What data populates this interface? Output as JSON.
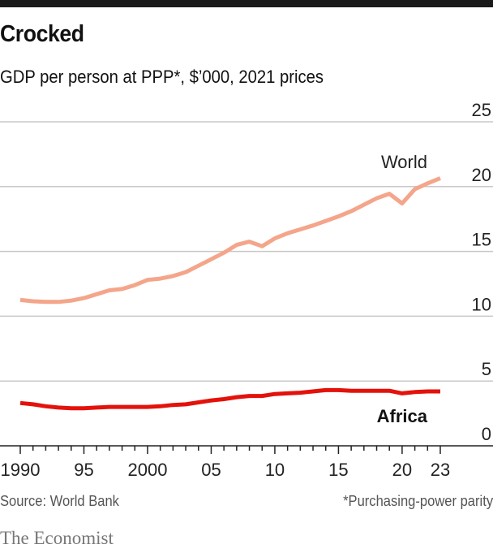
{
  "header": {
    "title": "Crocked",
    "subtitle": "GDP per person at PPP*, $’000, 2021 prices"
  },
  "footer": {
    "source": "Source: World Bank",
    "note": "*Purchasing-power parity",
    "logo": "The Economist"
  },
  "chart_data": {
    "type": "line",
    "title": "Crocked",
    "subtitle": "GDP per person at PPP*, $’000, 2021 prices",
    "ylim": [
      0,
      25
    ],
    "yticks": [
      0,
      5,
      10,
      15,
      20,
      25
    ],
    "ytick_labels": [
      "0",
      "5",
      "10",
      "15",
      "20",
      "25"
    ],
    "xlim": [
      1990,
      2023
    ],
    "xticks": [
      1990,
      1995,
      2000,
      2005,
      2010,
      2015,
      2020,
      2023
    ],
    "xtick_labels": [
      "1990",
      "95",
      "2000",
      "05",
      "10",
      "15",
      "20",
      "23"
    ],
    "grid": true,
    "x": [
      1990,
      1991,
      1992,
      1993,
      1994,
      1995,
      1996,
      1997,
      1998,
      1999,
      2000,
      2001,
      2002,
      2003,
      2004,
      2005,
      2006,
      2007,
      2008,
      2009,
      2010,
      2011,
      2012,
      2013,
      2014,
      2015,
      2016,
      2017,
      2018,
      2019,
      2020,
      2021,
      2022,
      2023
    ],
    "series": [
      {
        "name": "World",
        "color": "#f4a58a",
        "values": [
          11.25,
          11.15,
          11.1,
          11.1,
          11.2,
          11.4,
          11.7,
          12.0,
          12.1,
          12.4,
          12.8,
          12.9,
          13.1,
          13.4,
          13.9,
          14.4,
          14.9,
          15.5,
          15.75,
          15.4,
          16.0,
          16.4,
          16.7,
          17.0,
          17.35,
          17.7,
          18.1,
          18.6,
          19.1,
          19.45,
          18.7,
          19.8,
          20.25,
          20.65
        ]
      },
      {
        "name": "Africa",
        "color": "#e3120b",
        "values": [
          3.3,
          3.2,
          3.05,
          2.95,
          2.9,
          2.9,
          2.95,
          3.0,
          3.0,
          3.0,
          3.0,
          3.05,
          3.15,
          3.2,
          3.35,
          3.5,
          3.6,
          3.75,
          3.85,
          3.85,
          4.0,
          4.05,
          4.1,
          4.2,
          4.3,
          4.3,
          4.25,
          4.25,
          4.25,
          4.25,
          4.05,
          4.15,
          4.2,
          4.2
        ]
      }
    ]
  }
}
